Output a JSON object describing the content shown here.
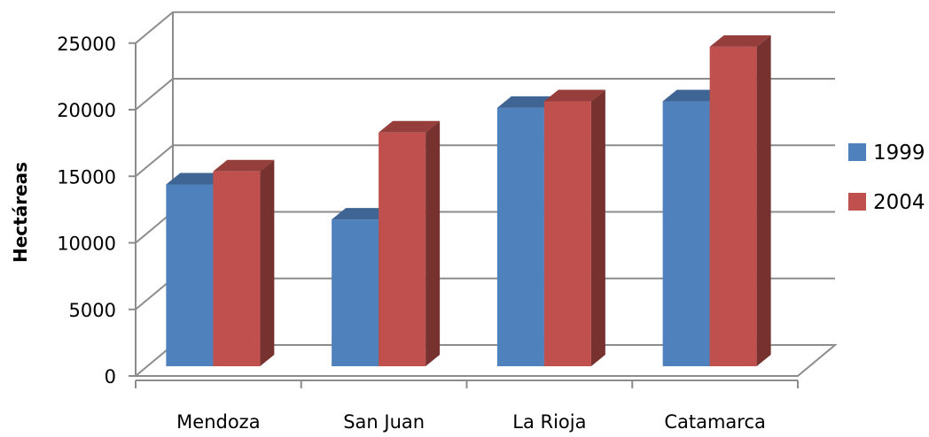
{
  "chart_data": {
    "type": "bar",
    "title": "",
    "xlabel": "",
    "ylabel": "Hectáreas",
    "categories": [
      "Mendoza",
      "San Juan",
      "La Rioja",
      "Catamarca"
    ],
    "series": [
      {
        "name": "1999",
        "values": [
          14000,
          11300,
          19900,
          20400
        ],
        "color": "#4F81BD"
      },
      {
        "name": "2004",
        "values": [
          15000,
          18000,
          20400,
          24600
        ],
        "color": "#C0504D"
      }
    ],
    "ylim": [
      0,
      25000
    ],
    "y_ticks": [
      "0",
      "5000",
      "10000",
      "15000",
      "20000",
      "25000"
    ],
    "grid": true,
    "legend_position": "right",
    "style": "3d-clustered-column"
  }
}
